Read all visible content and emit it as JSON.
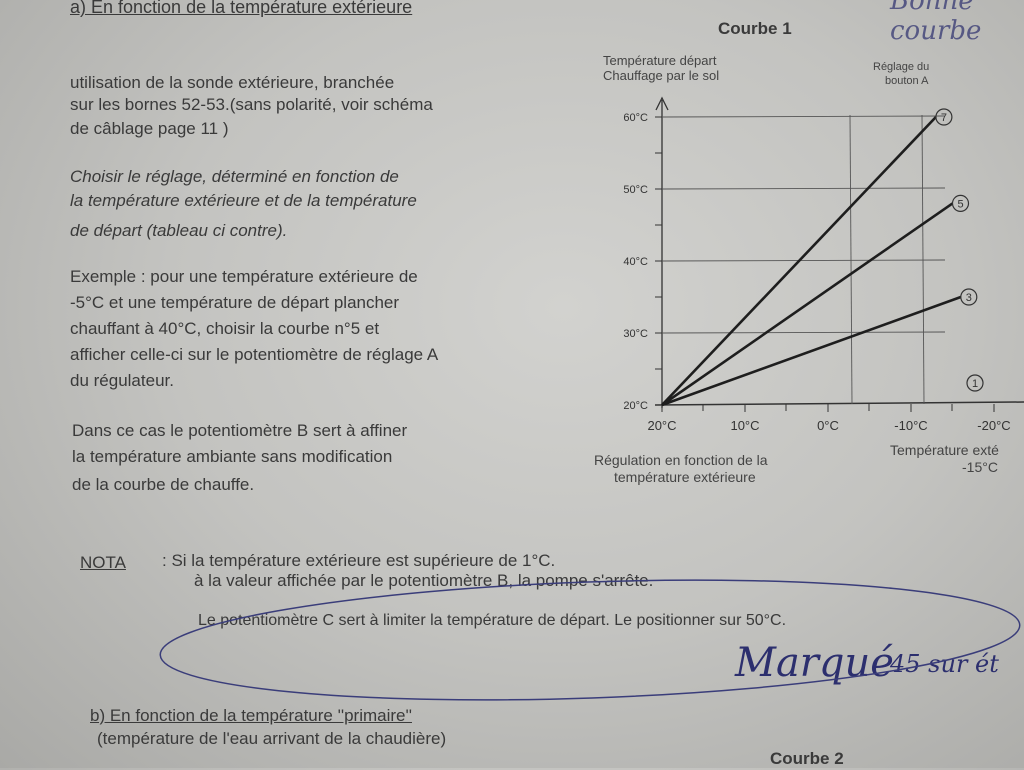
{
  "section_a": {
    "title": "a)  En fonction de la température extérieure",
    "para1": [
      "utilisation de la sonde extérieure, branchée",
      "sur les bornes 52-53.(sans polarité, voir schéma",
      "de câblage page 11 )"
    ],
    "para2": [
      "Choisir le réglage, déterminé en fonction de",
      "la température extérieure et de la température",
      "de départ (tableau ci contre)."
    ],
    "para3": [
      "Exemple : pour une température extérieure de",
      "-5°C et une température de départ plancher",
      "chauffant à 40°C, choisir la courbe n°5 et",
      "afficher celle-ci sur le potentiomètre de réglage A",
      "du régulateur."
    ],
    "para4": [
      "Dans ce cas le potentiomètre B sert à affiner",
      "la température ambiante sans modification",
      "de la courbe de chauffe."
    ]
  },
  "nota": {
    "label": "NOTA",
    "lines": [
      ":  Si la température extérieure est supérieure de 1°C.",
      "à la valeur affichée par le potentiomètre B, la pompe s'arrête."
    ],
    "circled": "Le potentiomètre C sert à limiter la température de départ. Le positionner sur 50°C."
  },
  "handwriting": {
    "main": "Marqué",
    "small": "45 sur ét",
    "top": "Bonne courbe"
  },
  "section_b": {
    "title": "b) En fonction de la température  ''primaire''",
    "subtitle": "(température de l'eau arrivant de la chaudière)",
    "curve2": "Courbe 2"
  },
  "chart_data": {
    "type": "line",
    "title": "Courbe 1",
    "ylabel": [
      "Température départ",
      "Chauffage par le sol"
    ],
    "xlabel": [
      "Régulation en fonction de la",
      "température extérieure"
    ],
    "x_right_label": [
      "Température exté",
      "-15°C"
    ],
    "knob_label": [
      "Réglage du",
      "bouton A"
    ],
    "yticks": [
      "20°C",
      "30°C",
      "40°C",
      "50°C",
      "60°C"
    ],
    "yvalues": [
      20,
      30,
      40,
      50,
      60
    ],
    "xticks": [
      "20°C",
      "10°C",
      "0°C",
      "-10°C",
      "-20°C"
    ],
    "xvalues": [
      20,
      10,
      0,
      -10,
      -20
    ],
    "series": [
      {
        "name": "7",
        "x": [
          20,
          -13
        ],
        "y": [
          20,
          60
        ]
      },
      {
        "name": "5",
        "x": [
          20,
          -15
        ],
        "y": [
          20,
          48
        ]
      },
      {
        "name": "3",
        "x": [
          20,
          -16
        ],
        "y": [
          20,
          35
        ]
      },
      {
        "name": "1",
        "x": [],
        "y": []
      }
    ],
    "ylim": [
      20,
      60
    ],
    "xlim": [
      20,
      -20
    ],
    "grid": true
  }
}
